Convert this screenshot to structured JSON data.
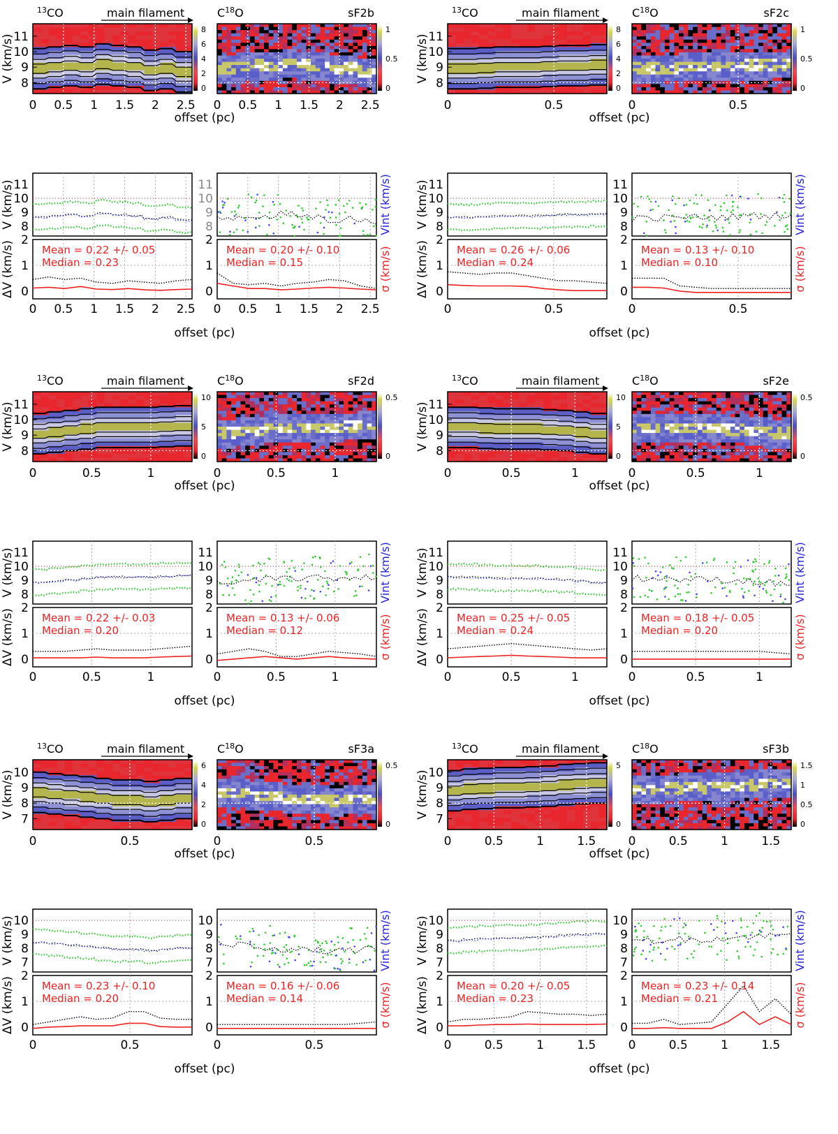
{
  "chart_data": [
    {
      "id": "sF2b",
      "type": "position-velocity",
      "name": "sF2b",
      "label_13co": "13CO",
      "label_c18o": "C18O",
      "filament_label": "main filament",
      "xlabel": "offset (pc)",
      "ylabel_pv": "V (km/s)",
      "ylabel_v": "V (km/s)",
      "ylabel_dv": "ΔV (km/s)",
      "right_label_v": "Vint (km/s)",
      "right_label_dv": "σ (km/s)",
      "xlim": [
        0,
        2.6
      ],
      "xticks": [
        "0",
        "0.5",
        "1",
        "1.5",
        "2",
        "2.5"
      ],
      "xtick_values": [
        0,
        0.5,
        1,
        1.5,
        2,
        2.5
      ],
      "pv_ylim": [
        7.3,
        11.8
      ],
      "pv_yticks": [
        "8",
        "9",
        "10",
        "11"
      ],
      "pv_ytick_values": [
        8,
        9,
        10,
        11
      ],
      "v_ylim": [
        7.3,
        11.8
      ],
      "v_yticks": [
        "8",
        "9",
        "10",
        "11"
      ],
      "v_ytick_values": [
        8,
        9,
        10,
        11
      ],
      "ref_velocity": 10,
      "colorbar_13co": [
        "0",
        "2",
        "4",
        "6",
        "8"
      ],
      "colorbar_c18o": [
        "0",
        "0.5",
        "1"
      ],
      "ridge_velocity_13co": [
        8.9,
        9.0,
        9.1,
        9.0,
        9.2,
        9.1,
        9.0,
        8.8,
        8.9,
        8.7
      ],
      "stats_13co": {
        "mean": "Mean = 0.22 +/- 0.05",
        "median": "Median = 0.23"
      },
      "stats_c18o": {
        "mean": "Mean = 0.20 +/- 0.10",
        "median": "Median = 0.15"
      },
      "dv_13co": [
        0.45,
        0.55,
        0.45,
        0.5,
        0.35,
        0.3,
        0.4,
        0.35,
        0.3,
        0.4,
        0.45
      ],
      "sigma_13co": [
        0.12,
        0.15,
        0.1,
        0.18,
        0.08,
        0.06,
        0.1,
        0.05,
        0.03,
        0.06,
        0.08
      ],
      "dv_c18o": [
        0.7,
        0.3,
        0.25,
        0.3,
        0.2,
        0.3,
        0.35,
        0.45,
        0.4,
        0.2,
        0.1
      ],
      "sigma_c18o": [
        0.3,
        0.2,
        0.1,
        0.1,
        0.05,
        0.08,
        0.12,
        0.15,
        0.12,
        0.08,
        0.05
      ]
    },
    {
      "id": "sF2c",
      "type": "position-velocity",
      "name": "sF2c",
      "label_13co": "13CO",
      "label_c18o": "C18O",
      "filament_label": "main filament",
      "xlabel": "offset (pc)",
      "ylabel_pv": "V (km/s)",
      "ylabel_v": "V (km/s)",
      "ylabel_dv": "ΔV (km/s)",
      "right_label_v": "Vint (km/s)",
      "right_label_dv": "σ (km/s)",
      "xlim": [
        0,
        0.75
      ],
      "xticks": [
        "0",
        "0.5"
      ],
      "xtick_values": [
        0,
        0.5
      ],
      "pv_ylim": [
        7.3,
        11.8
      ],
      "pv_yticks": [
        "8",
        "9",
        "10",
        "11"
      ],
      "pv_ytick_values": [
        8,
        9,
        10,
        11
      ],
      "v_ylim": [
        7.3,
        11.8
      ],
      "v_yticks": [
        "8",
        "9",
        "10",
        "11"
      ],
      "v_ytick_values": [
        8,
        9,
        10,
        11
      ],
      "ref_velocity": 10,
      "colorbar_13co": [
        "0",
        "2",
        "4",
        "6",
        "8"
      ],
      "colorbar_c18o": [
        "0",
        "0.5",
        "1"
      ],
      "ridge_velocity_13co": [
        8.9,
        8.9,
        8.95,
        9.0,
        9.0,
        9.0,
        9.05,
        9.1,
        9.1,
        9.15
      ],
      "stats_13co": {
        "mean": "Mean = 0.26 +/- 0.06",
        "median": "Median = 0.24"
      },
      "stats_c18o": {
        "mean": "Mean = 0.13 +/- 0.10",
        "median": "Median = 0.10"
      },
      "dv_13co": [
        0.75,
        0.7,
        0.65,
        0.7,
        0.7,
        0.6,
        0.5,
        0.4,
        0.4,
        0.35,
        0.3
      ],
      "sigma_13co": [
        0.25,
        0.22,
        0.2,
        0.2,
        0.2,
        0.18,
        0.1,
        0.05,
        0.02,
        0.02,
        0.02
      ],
      "dv_c18o": [
        0.5,
        0.5,
        0.5,
        0.2,
        0.15,
        0.1,
        0.1,
        0.1,
        0.1,
        0.1,
        0.1
      ],
      "sigma_c18o": [
        0.15,
        0.15,
        0.12,
        0.0,
        -0.05,
        -0.05,
        -0.05,
        -0.05,
        -0.05,
        -0.05,
        -0.05
      ]
    },
    {
      "id": "sF2d",
      "type": "position-velocity",
      "name": "sF2d",
      "label_13co": "13CO",
      "label_c18o": "C18O",
      "filament_label": "main filament",
      "xlabel": "offset (pc)",
      "ylabel_pv": "V (km/s)",
      "ylabel_v": "V (km/s)",
      "ylabel_dv": "ΔV (km/s)",
      "right_label_v": "Vint (km/s)",
      "right_label_dv": "σ (km/s)",
      "xlim": [
        0,
        1.35
      ],
      "xticks": [
        "0",
        "0.5",
        "1"
      ],
      "xtick_values": [
        0,
        0.5,
        1
      ],
      "pv_ylim": [
        7.3,
        11.8
      ],
      "pv_yticks": [
        "8",
        "9",
        "10",
        "11"
      ],
      "pv_ytick_values": [
        8,
        9,
        10,
        11
      ],
      "v_ylim": [
        7.3,
        11.8
      ],
      "v_yticks": [
        "8",
        "9",
        "10",
        "11"
      ],
      "v_ytick_values": [
        8,
        9,
        10,
        11
      ],
      "ref_velocity": 10,
      "colorbar_13co": [
        "0",
        "5",
        "10"
      ],
      "colorbar_c18o": [
        "0",
        "0.5"
      ],
      "ridge_velocity_13co": [
        9.1,
        9.2,
        9.3,
        9.4,
        9.5,
        9.5,
        9.5,
        9.5,
        9.55,
        9.6
      ],
      "stats_13co": {
        "mean": "Mean = 0.22 +/- 0.03",
        "median": "Median = 0.20"
      },
      "stats_c18o": {
        "mean": "Mean = 0.13 +/- 0.06",
        "median": "Median = 0.12"
      },
      "dv_13co": [
        0.3,
        0.3,
        0.3,
        0.35,
        0.4,
        0.35,
        0.35,
        0.35,
        0.4,
        0.45,
        0.5
      ],
      "sigma_13co": [
        0.05,
        0.05,
        0.05,
        0.05,
        0.08,
        0.05,
        0.05,
        0.05,
        0.08,
        0.1,
        0.12
      ],
      "dv_c18o": [
        0.2,
        0.3,
        0.4,
        0.3,
        0.1,
        0.1,
        0.2,
        0.3,
        0.25,
        0.2,
        0.1
      ],
      "sigma_c18o": [
        -0.05,
        0.0,
        0.05,
        0.1,
        0.05,
        0.0,
        0.05,
        0.1,
        0.05,
        0.02,
        0.0
      ]
    },
    {
      "id": "sF2e",
      "type": "position-velocity",
      "name": "sF2e",
      "label_13co": "13CO",
      "label_c18o": "C18O",
      "filament_label": "main filament",
      "xlabel": "offset (pc)",
      "ylabel_pv": "V (km/s)",
      "ylabel_v": "V (km/s)",
      "ylabel_dv": "ΔV (km/s)",
      "right_label_v": "Vint (km/s)",
      "right_label_dv": "σ (km/s)",
      "xlim": [
        0,
        1.25
      ],
      "xticks": [
        "0",
        "0.5",
        "1"
      ],
      "xtick_values": [
        0,
        0.5,
        1
      ],
      "pv_ylim": [
        7.3,
        11.8
      ],
      "pv_yticks": [
        "8",
        "9",
        "10",
        "11"
      ],
      "pv_ytick_values": [
        8,
        9,
        10,
        11
      ],
      "v_ylim": [
        7.3,
        11.8
      ],
      "v_yticks": [
        "8",
        "9",
        "10",
        "11"
      ],
      "v_ytick_values": [
        8,
        9,
        10,
        11
      ],
      "ref_velocity": 10,
      "colorbar_13co": [
        "0",
        "5",
        "10"
      ],
      "colorbar_c18o": [
        "0",
        "0.5"
      ],
      "ridge_velocity_13co": [
        9.5,
        9.5,
        9.45,
        9.4,
        9.4,
        9.4,
        9.35,
        9.3,
        9.2,
        9.1
      ],
      "stats_13co": {
        "mean": "Mean = 0.25 +/- 0.05",
        "median": "Median = 0.24"
      },
      "stats_c18o": {
        "mean": "Mean = 0.18 +/- 0.05",
        "median": "Median = 0.20"
      },
      "dv_13co": [
        0.4,
        0.45,
        0.5,
        0.55,
        0.6,
        0.55,
        0.5,
        0.45,
        0.4,
        0.35,
        0.4
      ],
      "sigma_13co": [
        0.05,
        0.08,
        0.1,
        0.12,
        0.15,
        0.12,
        0.1,
        0.08,
        0.05,
        0.05,
        0.05
      ],
      "dv_c18o": [
        0.3,
        0.3,
        0.3,
        0.3,
        0.3,
        0.3,
        0.3,
        0.3,
        0.3,
        0.25,
        0.2
      ],
      "sigma_c18o": [
        0.0,
        0.0,
        0.0,
        0.0,
        0.0,
        0.0,
        0.0,
        0.0,
        0.0,
        0.0,
        0.0
      ]
    },
    {
      "id": "sF3a",
      "type": "position-velocity",
      "name": "sF3a",
      "label_13co": "13CO",
      "label_c18o": "C18O",
      "filament_label": "main filament",
      "xlabel": "offset (pc)",
      "ylabel_pv": "V (km/s)",
      "ylabel_v": "V (km/s)",
      "ylabel_dv": "ΔV (km/s)",
      "right_label_v": "Vint (km/s)",
      "right_label_dv": "σ (km/s)",
      "xlim": [
        0,
        0.82
      ],
      "xticks": [
        "0",
        "0.5"
      ],
      "xtick_values": [
        0,
        0.5
      ],
      "pv_ylim": [
        6.3,
        10.8
      ],
      "pv_yticks": [
        "7",
        "8",
        "9",
        "10"
      ],
      "pv_ytick_values": [
        7,
        8,
        9,
        10
      ],
      "v_ylim": [
        6.3,
        10.8
      ],
      "v_yticks": [
        "7",
        "8",
        "9",
        "10"
      ],
      "v_ytick_values": [
        7,
        8,
        9,
        10
      ],
      "ref_velocity": 10,
      "colorbar_13co": [
        "0",
        "2",
        "4",
        "6"
      ],
      "colorbar_c18o": [
        "0",
        "0.5"
      ],
      "ridge_velocity_13co": [
        8.7,
        8.6,
        8.5,
        8.4,
        8.3,
        8.2,
        8.2,
        8.1,
        8.2,
        8.3
      ],
      "stats_13co": {
        "mean": "Mean = 0.23 +/- 0.10",
        "median": "Median = 0.20"
      },
      "stats_c18o": {
        "mean": "Mean = 0.16 +/- 0.06",
        "median": "Median = 0.14"
      },
      "dv_13co": [
        0.1,
        0.2,
        0.3,
        0.4,
        0.3,
        0.35,
        0.6,
        0.6,
        0.35,
        0.3,
        0.3
      ],
      "sigma_13co": [
        -0.05,
        0.0,
        0.02,
        0.05,
        0.05,
        0.05,
        0.15,
        0.15,
        0.02,
        0.0,
        0.0
      ],
      "dv_c18o": [
        0.1,
        0.1,
        0.1,
        0.1,
        0.1,
        0.1,
        0.1,
        0.1,
        0.1,
        0.15,
        0.2
      ],
      "sigma_c18o": [
        -0.05,
        -0.05,
        -0.05,
        -0.05,
        -0.05,
        -0.05,
        -0.05,
        -0.05,
        -0.05,
        -0.05,
        -0.05
      ]
    },
    {
      "id": "sF3b",
      "type": "position-velocity",
      "name": "sF3b",
      "label_13co": "13CO",
      "label_c18o": "C18O",
      "filament_label": "main filament",
      "xlabel": "offset (pc)",
      "ylabel_pv": "V (km/s)",
      "ylabel_v": "V (km/s)",
      "ylabel_dv": "ΔV (km/s)",
      "right_label_v": "Vint (km/s)",
      "right_label_dv": "σ (km/s)",
      "xlim": [
        0,
        1.72
      ],
      "xticks": [
        "0",
        "0.5",
        "1",
        "1.5"
      ],
      "xtick_values": [
        0,
        0.5,
        1,
        1.5
      ],
      "pv_ylim": [
        6.3,
        10.8
      ],
      "pv_yticks": [
        "7",
        "8",
        "9",
        "10"
      ],
      "pv_ytick_values": [
        7,
        8,
        9,
        10
      ],
      "v_ylim": [
        6.3,
        10.8
      ],
      "v_yticks": [
        "7",
        "8",
        "9",
        "10"
      ],
      "v_ytick_values": [
        7,
        8,
        9,
        10
      ],
      "ref_velocity": 10,
      "colorbar_13co": [
        "0",
        "5"
      ],
      "colorbar_c18o": [
        "0",
        "0.5",
        "1",
        "1.5"
      ],
      "ridge_velocity_13co": [
        8.8,
        8.9,
        8.95,
        9.0,
        9.0,
        9.05,
        9.1,
        9.2,
        9.25,
        9.3
      ],
      "stats_13co": {
        "mean": "Mean = 0.20 +/- 0.05",
        "median": "Median = 0.23"
      },
      "stats_c18o": {
        "mean": "Mean = 0.23 +/- 0.14",
        "median": "Median = 0.21"
      },
      "dv_13co": [
        0.2,
        0.3,
        0.3,
        0.35,
        0.4,
        0.6,
        0.55,
        0.5,
        0.5,
        0.45,
        0.5
      ],
      "sigma_13co": [
        0.05,
        0.05,
        0.08,
        0.1,
        0.1,
        0.12,
        0.1,
        0.1,
        0.1,
        0.1,
        0.12
      ],
      "dv_c18o": [
        0.15,
        0.15,
        0.3,
        0.1,
        0.15,
        0.2,
        0.9,
        1.6,
        0.6,
        1.1,
        0.5
      ],
      "sigma_c18o": [
        -0.05,
        -0.05,
        -0.02,
        -0.05,
        -0.05,
        -0.05,
        0.2,
        0.6,
        0.1,
        0.4,
        0.1
      ]
    }
  ]
}
